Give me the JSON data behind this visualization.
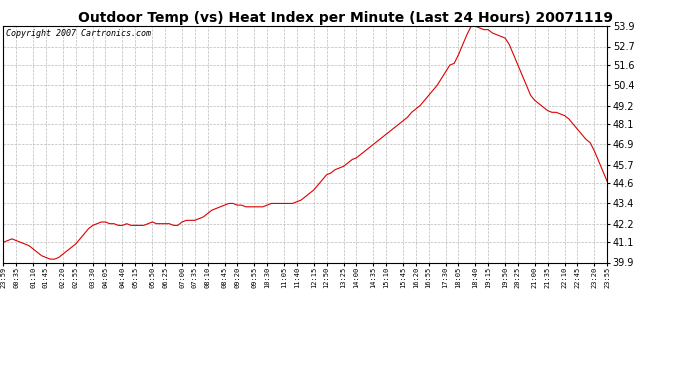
{
  "title": "Outdoor Temp (vs) Heat Index per Minute (Last 24 Hours) 20071119",
  "copyright": "Copyright 2007 Cartronics.com",
  "line_color": "#dd0000",
  "bg_color": "#ffffff",
  "plot_bg_color": "#ffffff",
  "grid_color": "#bbbbbb",
  "grid_style": "--",
  "ylim": [
    39.9,
    53.9
  ],
  "yticks": [
    39.9,
    41.1,
    42.2,
    43.4,
    44.6,
    45.7,
    46.9,
    48.1,
    49.2,
    50.4,
    51.6,
    52.7,
    53.9
  ],
  "xtick_labels": [
    "23:59",
    "00:35",
    "01:10",
    "01:45",
    "02:20",
    "02:55",
    "03:30",
    "04:05",
    "04:40",
    "05:15",
    "05:50",
    "06:25",
    "07:00",
    "07:35",
    "08:10",
    "08:45",
    "09:20",
    "09:55",
    "10:30",
    "11:05",
    "11:40",
    "12:15",
    "12:50",
    "13:25",
    "14:00",
    "14:35",
    "15:10",
    "15:45",
    "16:20",
    "16:55",
    "17:30",
    "18:05",
    "18:40",
    "19:15",
    "19:50",
    "20:25",
    "21:00",
    "21:35",
    "22:10",
    "22:45",
    "23:20",
    "23:55"
  ],
  "data_y": [
    41.1,
    41.2,
    41.3,
    41.2,
    41.1,
    41.0,
    40.9,
    40.7,
    40.5,
    40.3,
    40.2,
    40.1,
    40.1,
    40.2,
    40.4,
    40.6,
    40.8,
    41.0,
    41.3,
    41.6,
    41.9,
    42.1,
    42.2,
    42.3,
    42.3,
    42.2,
    42.2,
    42.1,
    42.1,
    42.2,
    42.1,
    42.1,
    42.1,
    42.1,
    42.2,
    42.3,
    42.2,
    42.2,
    42.2,
    42.2,
    42.1,
    42.1,
    42.3,
    42.4,
    42.4,
    42.4,
    42.5,
    42.6,
    42.8,
    43.0,
    43.1,
    43.2,
    43.3,
    43.4,
    43.4,
    43.3,
    43.3,
    43.2,
    43.2,
    43.2,
    43.2,
    43.2,
    43.3,
    43.4,
    43.4,
    43.4,
    43.4,
    43.4,
    43.4,
    43.5,
    43.6,
    43.8,
    44.0,
    44.2,
    44.5,
    44.8,
    45.1,
    45.2,
    45.4,
    45.5,
    45.6,
    45.8,
    46.0,
    46.1,
    46.3,
    46.5,
    46.7,
    46.9,
    47.1,
    47.3,
    47.5,
    47.7,
    47.9,
    48.1,
    48.3,
    48.5,
    48.8,
    49.0,
    49.2,
    49.5,
    49.8,
    50.1,
    50.4,
    50.8,
    51.2,
    51.6,
    51.7,
    52.2,
    52.8,
    53.4,
    53.9,
    53.9,
    53.8,
    53.7,
    53.7,
    53.5,
    53.4,
    53.3,
    53.2,
    52.8,
    52.2,
    51.6,
    51.0,
    50.4,
    49.8,
    49.5,
    49.3,
    49.1,
    48.9,
    48.8,
    48.8,
    48.7,
    48.6,
    48.4,
    48.1,
    47.8,
    47.5,
    47.2,
    47.0,
    46.5,
    45.9,
    45.3,
    44.7
  ],
  "title_fontsize": 10,
  "copyright_fontsize": 6,
  "ytick_fontsize": 7,
  "xtick_fontsize": 5,
  "figwidth": 6.9,
  "figheight": 3.75,
  "dpi": 100
}
